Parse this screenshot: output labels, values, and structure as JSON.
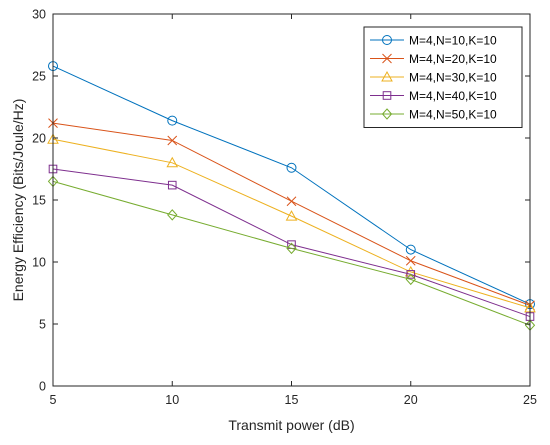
{
  "chart_data": {
    "type": "line",
    "title": "",
    "xlabel": "Transmit power (dB)",
    "ylabel": "Energy Efficiency (Bits/Joule/Hz)",
    "x": [
      5,
      10,
      15,
      20,
      25
    ],
    "xlim": [
      5,
      25
    ],
    "ylim": [
      0,
      30
    ],
    "xticks": [
      "5",
      "10",
      "15",
      "20",
      "25"
    ],
    "yticks": [
      "0",
      "5",
      "10",
      "15",
      "20",
      "25",
      "30"
    ],
    "grid": false,
    "legend_position": "top-right",
    "series": [
      {
        "name": "M=4,N=10,K=10",
        "values": [
          25.8,
          21.4,
          17.6,
          11.0,
          6.6
        ],
        "color": "#0072BD",
        "marker": "circle"
      },
      {
        "name": "M=4,N=20,K=10",
        "values": [
          21.2,
          19.8,
          14.9,
          10.1,
          6.5
        ],
        "color": "#D95319",
        "marker": "x"
      },
      {
        "name": "M=4,N=30,K=10",
        "values": [
          19.9,
          18.0,
          13.7,
          9.2,
          6.3
        ],
        "color": "#EDB120",
        "marker": "triangle"
      },
      {
        "name": "M=4,N=40,K=10",
        "values": [
          17.5,
          16.2,
          11.4,
          9.0,
          5.6
        ],
        "color": "#7E2F8E",
        "marker": "square"
      },
      {
        "name": "M=4,N=50,K=10",
        "values": [
          16.5,
          13.8,
          11.1,
          8.6,
          4.9
        ],
        "color": "#77AC30",
        "marker": "diamond"
      }
    ]
  }
}
